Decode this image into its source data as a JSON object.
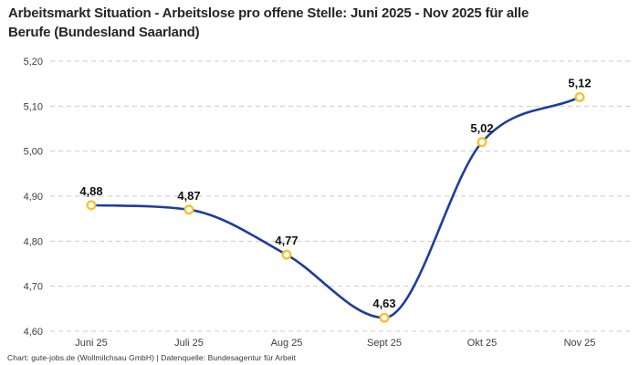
{
  "title": {
    "line1": "Arbeitsmarkt Situation - Arbeitslose pro offene Stelle: Juni 2025 - Nov 2025 für alle",
    "line2": "Berufe (Bundesland Saarland)"
  },
  "footer": "Chart: gute-jobs.de (Wollmilchsau GmbH) | Datenquelle: Bundesagentur für Arbeit",
  "chart_data": {
    "type": "line",
    "title": "Arbeitsmarkt Situation - Arbeitslose pro offene Stelle: Juni 2025 - Nov 2025 für alle Berufe (Bundesland Saarland)",
    "categories": [
      "Juni 25",
      "Juli 25",
      "Aug 25",
      "Sept 25",
      "Okt 25",
      "Nov 25"
    ],
    "values": [
      4.88,
      4.87,
      4.77,
      4.63,
      5.02,
      5.12
    ],
    "point_labels": [
      "4,88",
      "4,87",
      "4,77",
      "4,63",
      "5,02",
      "5,12"
    ],
    "xlabel": "",
    "ylabel": "",
    "ylim": [
      4.6,
      5.2
    ],
    "y_ticks": [
      {
        "value": 5.2,
        "label": "5,20"
      },
      {
        "value": 5.1,
        "label": "5,10"
      },
      {
        "value": 5.0,
        "label": "5,00"
      },
      {
        "value": 4.9,
        "label": "4,90"
      },
      {
        "value": 4.8,
        "label": "4,80"
      },
      {
        "value": 4.7,
        "label": "4,70"
      },
      {
        "value": 4.6,
        "label": "4,60"
      }
    ],
    "grid": "horizontal-dashed",
    "legend": "none",
    "marker": "open-circle",
    "line_style": "smooth",
    "colors": {
      "line": "#1e3d9c",
      "marker_stroke": "#f7c231",
      "marker_fill": "#ffffff",
      "grid": "#cbcbcb",
      "data_label": "#111111",
      "axis_text": "#3d3d3d",
      "title_text": "#262626",
      "footer_text": "#363636",
      "background": "#ffffff"
    }
  }
}
